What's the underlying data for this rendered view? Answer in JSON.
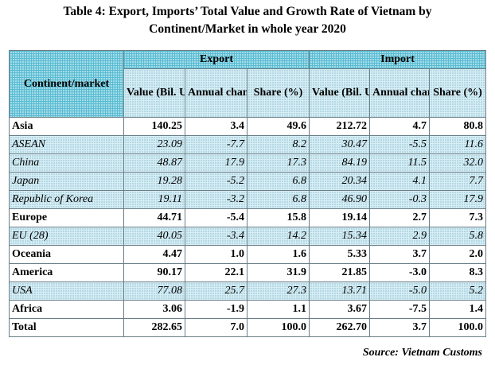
{
  "title": {
    "line1": "Table 4: Export, Imports’ Total Value and Growth Rate of Vietnam by",
    "line2": "Continent/Market in whole year 2020"
  },
  "headers": {
    "corner": "Continent/market",
    "export": "Export",
    "import": "Import",
    "value": "Value (Bil. USD)",
    "change": "Annual change (%)",
    "share": "Share (%)"
  },
  "rows": [
    {
      "market": "Asia",
      "exp_value": "140.25",
      "exp_change": "3.4",
      "exp_share": "49.6",
      "imp_value": "212.72",
      "imp_change": "4.7",
      "imp_share": "80.8",
      "style": "bold",
      "shade": "plain"
    },
    {
      "market": "ASEAN",
      "exp_value": "23.09",
      "exp_change": "-7.7",
      "exp_share": "8.2",
      "imp_value": "30.47",
      "imp_change": "-5.5",
      "imp_share": "11.6",
      "style": "ital",
      "shade": "shade"
    },
    {
      "market": "China",
      "exp_value": "48.87",
      "exp_change": "17.9",
      "exp_share": "17.3",
      "imp_value": "84.19",
      "imp_change": "11.5",
      "imp_share": "32.0",
      "style": "ital",
      "shade": "shade"
    },
    {
      "market": " Japan",
      "exp_value": "19.28",
      "exp_change": "-5.2",
      "exp_share": "6.8",
      "imp_value": "20.34",
      "imp_change": "4.1",
      "imp_share": "7.7",
      "style": "ital",
      "shade": "shade"
    },
    {
      "market": "Republic of Korea",
      "exp_value": "19.11",
      "exp_change": "-3.2",
      "exp_share": "6.8",
      "imp_value": "46.90",
      "imp_change": "-0.3",
      "imp_share": "17.9",
      "style": "ital",
      "shade": "shade"
    },
    {
      "market": "Europe",
      "exp_value": "44.71",
      "exp_change": "-5.4",
      "exp_share": "15.8",
      "imp_value": "19.14",
      "imp_change": "2.7",
      "imp_share": "7.3",
      "style": "bold",
      "shade": "plain"
    },
    {
      "market": "EU (28)",
      "exp_value": "40.05",
      "exp_change": "-3.4",
      "exp_share": "14.2",
      "imp_value": "15.34",
      "imp_change": "2.9",
      "imp_share": "5.8",
      "style": "ital",
      "shade": "shade"
    },
    {
      "market": "Oceania",
      "exp_value": "4.47",
      "exp_change": "1.0",
      "exp_share": "1.6",
      "imp_value": "5.33",
      "imp_change": "3.7",
      "imp_share": "2.0",
      "style": "bold",
      "shade": "plain"
    },
    {
      "market": "America",
      "exp_value": "90.17",
      "exp_change": "22.1",
      "exp_share": "31.9",
      "imp_value": "21.85",
      "imp_change": "-3.0",
      "imp_share": "8.3",
      "style": "bold",
      "shade": "plain"
    },
    {
      "market": "USA",
      "exp_value": "77.08",
      "exp_change": "25.7",
      "exp_share": "27.3",
      "imp_value": "13.71",
      "imp_change": "-5.0",
      "imp_share": "5.2",
      "style": "ital",
      "shade": "shade"
    },
    {
      "market": "Africa",
      "exp_value": "3.06",
      "exp_change": "-1.9",
      "exp_share": "1.1",
      "imp_value": "3.67",
      "imp_change": "-7.5",
      "imp_share": "1.4",
      "style": "bold",
      "shade": "plain"
    },
    {
      "market": "Total",
      "exp_value": "282.65",
      "exp_change": "7.0",
      "exp_share": "100.0",
      "imp_value": "262.70",
      "imp_change": "3.7",
      "imp_share": "100.0",
      "style": "bold",
      "shade": "plain"
    }
  ],
  "source": "Source: Vietnam Customs",
  "colors": {
    "header_fill": "#58bcd3",
    "subheader_fill": "#d8eef5",
    "shaded_row_fill": "#d8eef5",
    "border": "#6a7d86"
  }
}
